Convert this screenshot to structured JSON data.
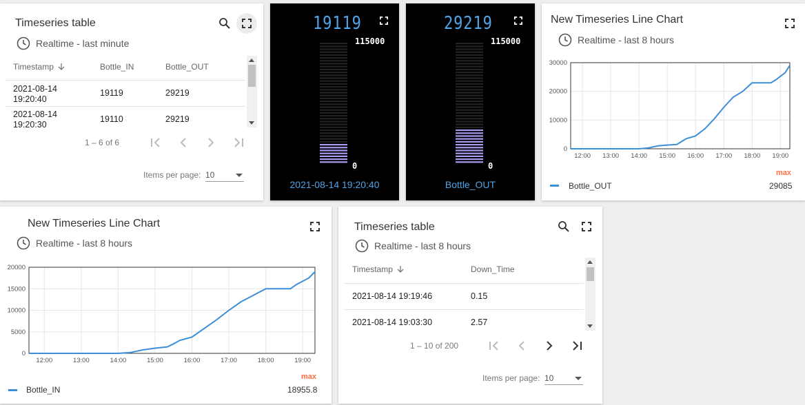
{
  "colors": {
    "accent": "#3a8fd8",
    "digital": "#4fa3e8",
    "bar_purple": "#a89cf0",
    "max_label": "#ff7043"
  },
  "table1": {
    "title": "Timeseries table",
    "subtitle": "Realtime - last minute",
    "columns": [
      "Timestamp",
      "Bottle_IN",
      "Bottle_OUT"
    ],
    "rows": [
      [
        "2021-08-14 19:20:40",
        "19119",
        "29219"
      ],
      [
        "2021-08-14 19:20:30",
        "19110",
        "29219"
      ]
    ],
    "pagination": "1 – 6 of 6",
    "items_per_page_label": "Items per page:",
    "items_per_page": "10"
  },
  "gauge1": {
    "value": "19119",
    "max": "115000",
    "min": "0",
    "label": "2021-08-14 19:20:40",
    "lit_segments": 7,
    "total_segments": 42
  },
  "gauge2": {
    "value": "29219",
    "max": "115000",
    "min": "0",
    "label": "Bottle_OUT",
    "lit_segments": 12,
    "total_segments": 42
  },
  "chart_out": {
    "title": "New Timeseries Line Chart",
    "subtitle": "Realtime - last 8 hours",
    "legend_name": "Bottle_OUT",
    "legend_max_label": "max",
    "legend_max_value": "29085"
  },
  "chart_in": {
    "title": "New Timeseries Line Chart",
    "subtitle": "Realtime - last 8 hours",
    "legend_name": "Bottle_IN",
    "legend_max_label": "max",
    "legend_max_value": "18955.8"
  },
  "table2": {
    "title": "Timeseries table",
    "subtitle": "Realtime - last 8 hours",
    "columns": [
      "Timestamp",
      "Down_Time"
    ],
    "rows": [
      [
        "2021-08-14 19:19:46",
        "0.15"
      ],
      [
        "2021-08-14 19:03:30",
        "2.57"
      ]
    ],
    "pagination": "1 – 10 of 200",
    "items_per_page_label": "Items per page:",
    "items_per_page": "10"
  },
  "chart_data": [
    {
      "type": "line",
      "series": [
        {
          "name": "Bottle_OUT",
          "x": [
            "11:35",
            "12:00",
            "13:00",
            "14:00",
            "14:20",
            "14:40",
            "15:00",
            "15:20",
            "15:30",
            "15:40",
            "16:00",
            "16:20",
            "16:40",
            "17:00",
            "17:20",
            "17:40",
            "18:00",
            "18:40",
            "18:50",
            "19:10",
            "19:20"
          ],
          "values": [
            0,
            0,
            0,
            0,
            300,
            1000,
            1300,
            1500,
            2500,
            3500,
            4500,
            7000,
            10500,
            14500,
            18000,
            20000,
            23000,
            23000,
            24000,
            26500,
            29085
          ]
        }
      ],
      "xticks": [
        "12:00",
        "13:00",
        "14:00",
        "15:00",
        "16:00",
        "17:00",
        "18:00",
        "19:00"
      ],
      "yticks": [
        0,
        10000,
        20000,
        30000
      ],
      "ylim": [
        0,
        30000
      ]
    },
    {
      "type": "line",
      "series": [
        {
          "name": "Bottle_IN",
          "x": [
            "11:35",
            "12:00",
            "13:00",
            "14:00",
            "14:20",
            "14:40",
            "15:00",
            "15:20",
            "15:30",
            "15:40",
            "16:00",
            "16:20",
            "16:40",
            "17:00",
            "17:20",
            "17:40",
            "18:00",
            "18:40",
            "18:50",
            "19:10",
            "19:20"
          ],
          "values": [
            0,
            0,
            0,
            0,
            200,
            800,
            1200,
            1500,
            2200,
            3000,
            3800,
            5800,
            7800,
            10000,
            12000,
            13500,
            15000,
            15000,
            16000,
            17500,
            18955.8
          ]
        }
      ],
      "xticks": [
        "12:00",
        "13:00",
        "14:00",
        "15:00",
        "16:00",
        "17:00",
        "18:00",
        "19:00"
      ],
      "yticks": [
        0,
        5000,
        10000,
        15000,
        20000
      ],
      "ylim": [
        0,
        20000
      ]
    }
  ]
}
